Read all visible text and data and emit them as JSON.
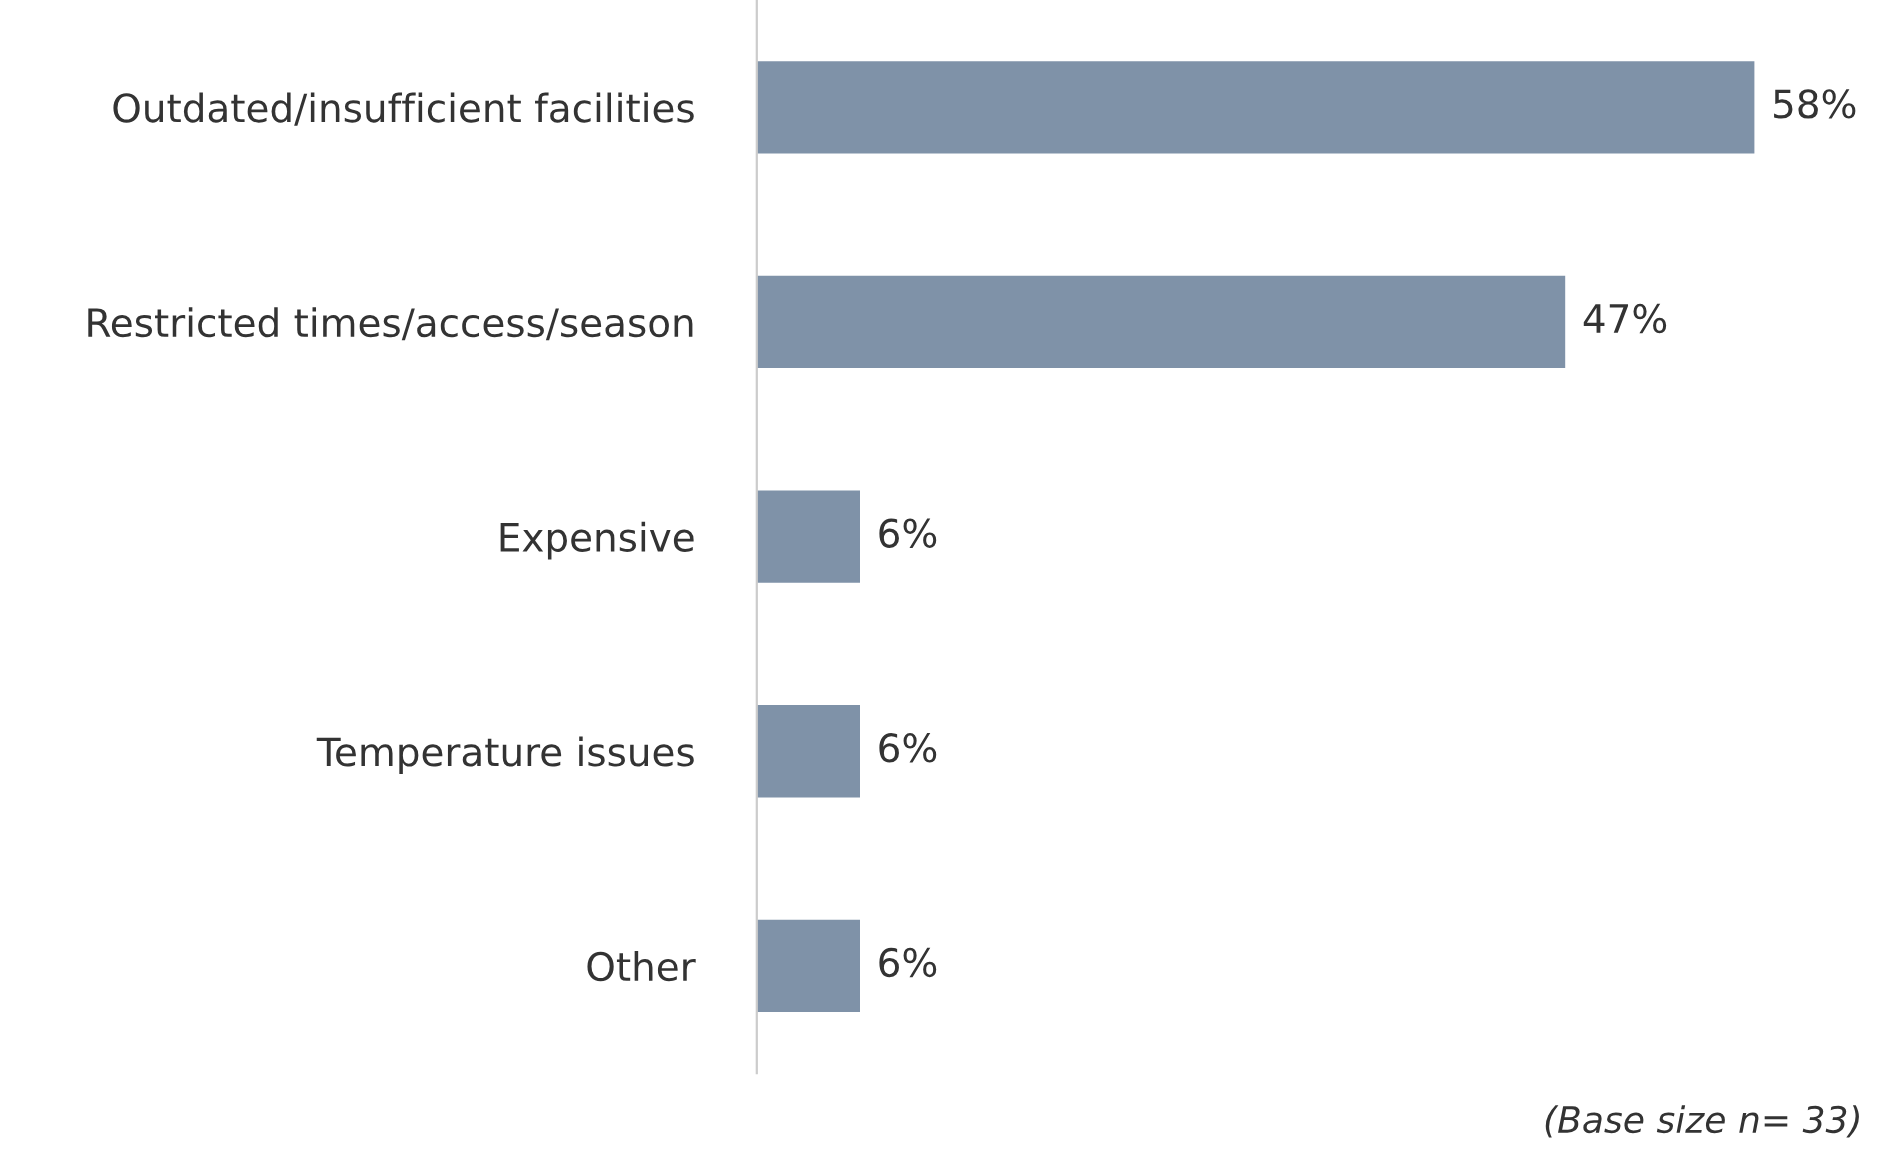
{
  "chart_data": {
    "type": "bar",
    "orientation": "horizontal",
    "categories": [
      "Outdated/insufficient facilities",
      "Restricted times/access/season",
      "Expensive",
      "Temperature issues",
      "Other"
    ],
    "values": [
      58,
      47,
      6,
      6,
      6
    ],
    "color": "#7f92a8",
    "value_labels": [
      "58%",
      "47%",
      "6%",
      "6%",
      "6%"
    ],
    "grid": false,
    "legend": false,
    "annotations": [
      "(Base size n= 33)"
    ]
  }
}
